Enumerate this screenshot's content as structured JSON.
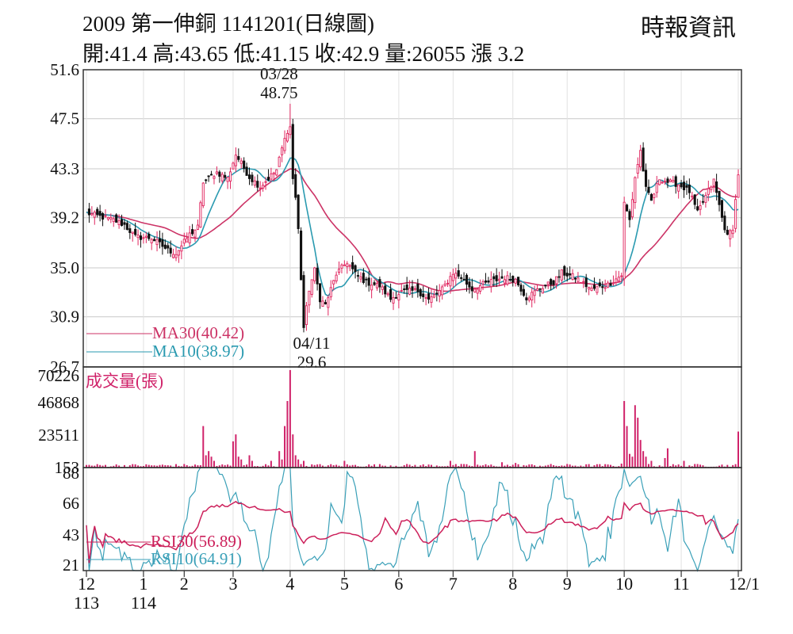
{
  "header": {
    "title": "2009  第一伸銅 1141201(日線圖)",
    "ohlc": "開:41.4 高:43.65 低:41.15 收:42.9 量:26055 漲 3.2",
    "source": "時報資訊"
  },
  "colors": {
    "up": "#e0245e",
    "down": "#111111",
    "ma30": "#cc3366",
    "ma10": "#2a9ab0",
    "volume": "#d0236a",
    "rsi30": "#cc1f5a",
    "rsi10": "#3aa0b8",
    "grid": "#c8c8c8",
    "frame": "#333333"
  },
  "chart_data": {
    "type": "candlestick",
    "x_tick_labels": [
      {
        "label": "12",
        "sub": "113"
      },
      {
        "label": "1",
        "sub": "114"
      },
      {
        "label": "2",
        "sub": ""
      },
      {
        "label": "3",
        "sub": ""
      },
      {
        "label": "4",
        "sub": ""
      },
      {
        "label": "5",
        "sub": ""
      },
      {
        "label": "6",
        "sub": ""
      },
      {
        "label": "7",
        "sub": ""
      },
      {
        "label": "8",
        "sub": ""
      },
      {
        "label": "9",
        "sub": ""
      },
      {
        "label": "10",
        "sub": ""
      },
      {
        "label": "11",
        "sub": ""
      },
      {
        "label": "12/1",
        "sub": ""
      }
    ],
    "x_tick_days": [
      0,
      21,
      36,
      54,
      75,
      95,
      115,
      135,
      157,
      177,
      198,
      219,
      240
    ],
    "price": {
      "yticks": [
        "51.6",
        "47.5",
        "43.3",
        "39.2",
        "35.0",
        "30.9",
        "26.7"
      ],
      "ylim": [
        26.7,
        51.6
      ],
      "annotations": [
        {
          "date": "03/28",
          "value": "48.75",
          "day": 75,
          "at": "high"
        },
        {
          "date": "04/11",
          "value": "29.6",
          "day": 80,
          "at": "low"
        }
      ],
      "legend": [
        {
          "label": "MA30",
          "value": "(40.42)",
          "color_key": "ma30"
        },
        {
          "label": "MA10",
          "value": "(38.97)",
          "color_key": "ma10"
        }
      ],
      "close_path": [
        [
          0,
          39.6
        ],
        [
          10,
          39.0
        ],
        [
          14,
          38.6
        ],
        [
          18,
          37.6
        ],
        [
          24,
          37.5
        ],
        [
          30,
          36.5
        ],
        [
          33,
          36.2
        ],
        [
          38,
          37.8
        ],
        [
          41,
          38.4
        ],
        [
          43,
          42.2
        ],
        [
          48,
          43.0
        ],
        [
          52,
          42.5
        ],
        [
          55,
          44.5
        ],
        [
          60,
          42.6
        ],
        [
          64,
          41.8
        ],
        [
          70,
          43.2
        ],
        [
          72,
          45.0
        ],
        [
          74,
          46.5
        ],
        [
          75,
          46.8
        ],
        [
          76,
          42.5
        ],
        [
          77,
          40.9
        ],
        [
          78,
          38.2
        ],
        [
          80,
          30.0
        ],
        [
          82,
          33.2
        ],
        [
          84,
          34.8
        ],
        [
          86,
          32.4
        ],
        [
          88,
          31.9
        ],
        [
          92,
          34.5
        ],
        [
          96,
          35.5
        ],
        [
          99,
          34.5
        ],
        [
          103,
          33.8
        ],
        [
          108,
          33.5
        ],
        [
          112,
          32.4
        ],
        [
          116,
          33.0
        ],
        [
          122,
          33.1
        ],
        [
          126,
          32.3
        ],
        [
          131,
          33.2
        ],
        [
          135,
          34.6
        ],
        [
          138,
          34.2
        ],
        [
          142,
          33.2
        ],
        [
          148,
          33.8
        ],
        [
          154,
          34.2
        ],
        [
          158,
          34.0
        ],
        [
          162,
          32.5
        ],
        [
          167,
          33.3
        ],
        [
          172,
          33.8
        ],
        [
          175,
          34.6
        ],
        [
          180,
          34.2
        ],
        [
          186,
          33.2
        ],
        [
          192,
          33.6
        ],
        [
          197,
          34.4
        ],
        [
          198,
          40.4
        ],
        [
          200,
          39.0
        ],
        [
          202,
          42.6
        ],
        [
          204,
          44.8
        ],
        [
          206,
          41.6
        ],
        [
          208,
          40.6
        ],
        [
          211,
          42.5
        ],
        [
          214,
          42.2
        ],
        [
          218,
          42.0
        ],
        [
          222,
          41.4
        ],
        [
          225,
          39.6
        ],
        [
          228,
          41.0
        ],
        [
          231,
          42.3
        ],
        [
          234,
          39.2
        ],
        [
          236,
          37.6
        ],
        [
          238,
          38.4
        ],
        [
          240,
          42.9
        ]
      ]
    },
    "volume": {
      "label": "成交量(張)",
      "yticks": [
        "70226",
        "46868",
        "23511",
        "153"
      ],
      "ylim": [
        153,
        70226
      ],
      "spikes": [
        {
          "day": 43,
          "value": 30000
        },
        {
          "day": 44,
          "value": 9000
        },
        {
          "day": 45,
          "value": 12000
        },
        {
          "day": 46,
          "value": 8000
        },
        {
          "day": 47,
          "value": 5000
        },
        {
          "day": 54,
          "value": 19000
        },
        {
          "day": 55,
          "value": 24000
        },
        {
          "day": 56,
          "value": 8000
        },
        {
          "day": 57,
          "value": 6000
        },
        {
          "day": 60,
          "value": 9000
        },
        {
          "day": 61,
          "value": 5000
        },
        {
          "day": 68,
          "value": 5000
        },
        {
          "day": 71,
          "value": 12000
        },
        {
          "day": 72,
          "value": 6000
        },
        {
          "day": 73,
          "value": 30000
        },
        {
          "day": 74,
          "value": 48000
        },
        {
          "day": 75,
          "value": 70226
        },
        {
          "day": 76,
          "value": 24000
        },
        {
          "day": 77,
          "value": 9000
        },
        {
          "day": 78,
          "value": 6000
        },
        {
          "day": 80,
          "value": 5000
        },
        {
          "day": 95,
          "value": 5000
        },
        {
          "day": 134,
          "value": 5000
        },
        {
          "day": 143,
          "value": 12000
        },
        {
          "day": 153,
          "value": 4000
        },
        {
          "day": 158,
          "value": 3500
        },
        {
          "day": 197,
          "value": 3000
        },
        {
          "day": 198,
          "value": 48000
        },
        {
          "day": 199,
          "value": 30000
        },
        {
          "day": 200,
          "value": 10000
        },
        {
          "day": 201,
          "value": 8000
        },
        {
          "day": 202,
          "value": 45000
        },
        {
          "day": 203,
          "value": 36000
        },
        {
          "day": 204,
          "value": 20000
        },
        {
          "day": 205,
          "value": 12000
        },
        {
          "day": 206,
          "value": 8000
        },
        {
          "day": 208,
          "value": 5000
        },
        {
          "day": 213,
          "value": 7000
        },
        {
          "day": 214,
          "value": 14000
        },
        {
          "day": 220,
          "value": 5000
        },
        {
          "day": 240,
          "value": 26055
        }
      ]
    },
    "rsi": {
      "yticks": [
        "88",
        "66",
        "43",
        "21"
      ],
      "ylim": [
        17,
        92
      ],
      "legend": [
        {
          "label": "RSI30",
          "value": "(56.89)",
          "color_key": "rsi30"
        },
        {
          "label": "RSI10",
          "value": "(64.91)",
          "color_key": "rsi10"
        }
      ]
    }
  }
}
